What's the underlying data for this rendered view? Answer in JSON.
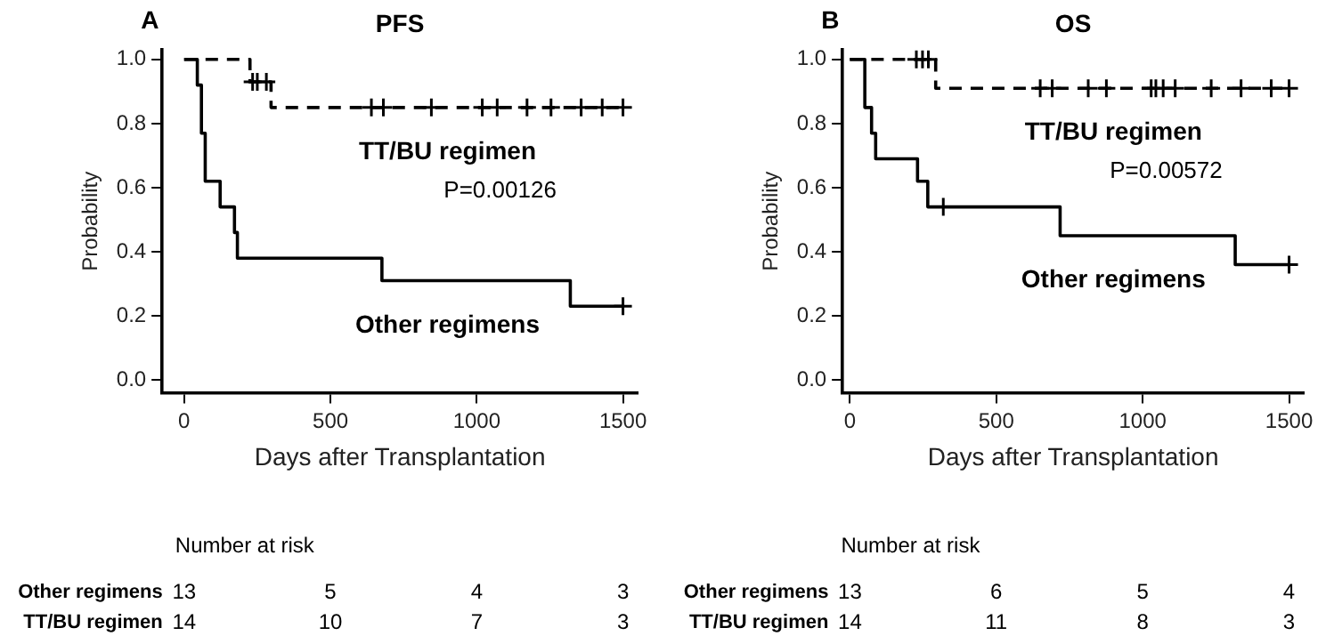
{
  "chart_data": [
    {
      "type": "step",
      "title": "PFS",
      "xlabel": "Days after Transplantation",
      "ylabel": "Probability",
      "xlim": [
        -75,
        1550
      ],
      "ylim": [
        -0.04,
        1.03
      ],
      "xticks": [
        0,
        500,
        1000,
        1500
      ],
      "yticks": [
        {
          "value": 0,
          "label": "0.0"
        },
        {
          "value": 0.2,
          "label": "0.2"
        },
        {
          "value": 0.4,
          "label": "0.4"
        },
        {
          "value": 0.6,
          "label": "0.6"
        },
        {
          "value": 0.8,
          "label": "0.8"
        },
        {
          "value": 1,
          "label": "1.0"
        }
      ],
      "annotations": [
        "A",
        "P=0.00126",
        "Number at risk",
        "Other regimens",
        "13",
        "5",
        "4",
        "3",
        "TT/BU regimen",
        "14",
        "10",
        "7",
        "3"
      ],
      "series": [
        {
          "name": "Other regimens",
          "color": "#000000",
          "line_style": "solid",
          "x": [
            0,
            45,
            59,
            72,
            123,
            172,
            182,
            676,
            1320,
            1500
          ],
          "values": [
            1,
            0.92,
            0.77,
            0.62,
            0.54,
            0.46,
            0.38,
            0.31,
            0.23,
            0.23
          ]
        },
        {
          "type": "scatter",
          "color": "#000000",
          "marker": "cross",
          "x": [
            1500
          ],
          "values": [
            0.23
          ]
        },
        {
          "name": "TT/BU regimen",
          "color": "#000000",
          "line_style": "dashed",
          "x": [
            0,
            225,
            297,
            1500
          ],
          "values": [
            1,
            0.93,
            0.85,
            0.85
          ]
        },
        {
          "type": "scatter",
          "color": "#000000",
          "marker": "cross",
          "x": [
            234,
            250,
            281,
            640,
            681,
            845,
            1019,
            1070,
            1172,
            1254,
            1357,
            1429,
            1500
          ],
          "values": [
            0.93,
            0.93,
            0.93,
            0.85,
            0.85,
            0.85,
            0.85,
            0.85,
            0.85,
            0.85,
            0.85,
            0.85,
            0.85
          ]
        }
      ]
    },
    {
      "type": "step",
      "title": "OS",
      "xlabel": "Days after Transplantation",
      "ylabel": "Probability",
      "xlim": [
        -25,
        1550
      ],
      "ylim": [
        -0.04,
        1.03
      ],
      "xticks": [
        0,
        500,
        1000,
        1500
      ],
      "yticks": [
        {
          "value": 0,
          "label": "0.0"
        },
        {
          "value": 0.2,
          "label": "0.2"
        },
        {
          "value": 0.4,
          "label": "0.4"
        },
        {
          "value": 0.6,
          "label": "0.6"
        },
        {
          "value": 0.8,
          "label": "0.8"
        },
        {
          "value": 1,
          "label": "1.0"
        }
      ],
      "annotations": [
        "B",
        "P=0.00572",
        "Number at risk",
        "Other regimens",
        "13",
        "6",
        "5",
        "4",
        "TT/BU regimen",
        "14",
        "11",
        "8",
        "3"
      ],
      "series": [
        {
          "name": "Other regimens",
          "color": "#000000",
          "line_style": "solid",
          "x": [
            0,
            51,
            74,
            88,
            231,
            266,
            718,
            1316,
            1500
          ],
          "values": [
            1,
            0.85,
            0.77,
            0.69,
            0.62,
            0.54,
            0.45,
            0.36,
            0.36
          ]
        },
        {
          "type": "scatter",
          "color": "#000000",
          "marker": "cross",
          "x": [
            319,
            1500
          ],
          "values": [
            0.54,
            0.36
          ]
        },
        {
          "name": "TT/BU regimen",
          "color": "#000000",
          "line_style": "dashed",
          "x": [
            0,
            293,
            1500
          ],
          "values": [
            1,
            0.91,
            0.91
          ]
        },
        {
          "type": "scatter",
          "color": "#000000",
          "marker": "cross",
          "x": [
            227,
            248,
            268,
            650,
            691,
            814,
            876,
            1029,
            1045,
            1070,
            1111,
            1234,
            1336,
            1439,
            1500
          ],
          "values": [
            1,
            1,
            1,
            0.91,
            0.91,
            0.91,
            0.91,
            0.91,
            0.91,
            0.91,
            0.91,
            0.91,
            0.91,
            0.91,
            0.91
          ]
        }
      ]
    }
  ]
}
